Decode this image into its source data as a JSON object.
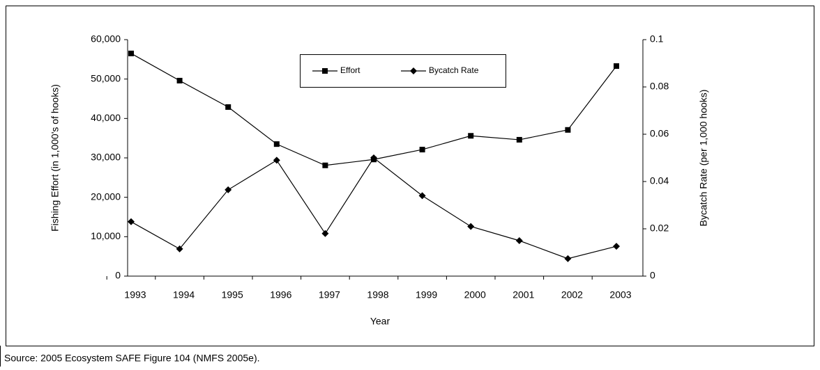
{
  "chart_data": {
    "type": "line",
    "x_label": "Year",
    "y_label": "Fishing Effort (in 1,000's of hooks)",
    "y2_label": "Bycatch Rate (per 1,000 hooks)",
    "categories": [
      "1993",
      "1994",
      "1995",
      "1996",
      "1997",
      "1998",
      "1999",
      "2000",
      "2001",
      "2002",
      "2003"
    ],
    "series": [
      {
        "name": "Effort",
        "color": "#000000",
        "marker": "square",
        "values": [
          56500,
          49600,
          42900,
          33500,
          28100,
          29600,
          32100,
          35600,
          34600,
          37100,
          53300
        ]
      },
      {
        "name": "Bycatch Rate",
        "color": "#000000",
        "marker": "diamond",
        "axis": "y2",
        "values": [
          0.023,
          0.0115,
          0.0365,
          0.049,
          0.018,
          0.05,
          0.034,
          0.021,
          0.015,
          0.0074,
          0.0126
        ]
      }
    ],
    "ylim": [
      0,
      60000
    ],
    "yticks": [
      0,
      {
        "value": 10000,
        "label": "10,000"
      },
      {
        "value": 20000,
        "label": "20,000"
      },
      {
        "value": 30000,
        "label": "30,000"
      },
      {
        "value": 40000,
        "label": "40,000"
      },
      {
        "value": 50000,
        "label": "50,000"
      },
      {
        "value": 60000,
        "label": "60,000"
      }
    ],
    "y2lim": [
      0,
      0.1
    ],
    "y2ticks": [
      0,
      0.02,
      0.04,
      0.06,
      0.08,
      0.1
    ],
    "legend": "top"
  },
  "source": "Source:  2005 Ecosystem SAFE Figure 104 (NMFS 2005e)."
}
